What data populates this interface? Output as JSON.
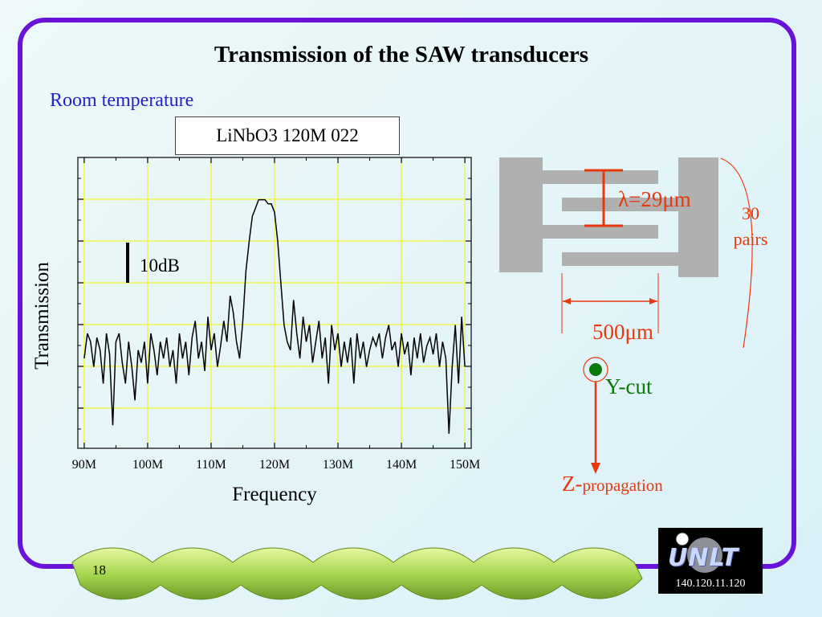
{
  "slide": {
    "title": "Transmission of the SAW transducers",
    "subtitle": "Room temperature",
    "page_number": "18",
    "logo_text": "UNLT",
    "logo_code": "140.120.11.120"
  },
  "chart_data": {
    "type": "line",
    "legend": "LiNbO3 120M 022",
    "xlabel": "Frequency",
    "ylabel": "Transmission",
    "xlim": [
      89,
      151
    ],
    "tick_labels": [
      "90M",
      "100M",
      "110M",
      "120M",
      "130M",
      "140M",
      "150M"
    ],
    "tick_values": [
      90,
      100,
      110,
      120,
      130,
      140,
      150
    ],
    "scale_bar": "10dB",
    "grid": true,
    "series": [
      {
        "x": [
          90.0,
          90.5,
          91.0,
          91.5,
          92.0,
          92.5,
          93.0,
          93.5,
          94.0,
          94.5,
          95.0,
          95.5,
          96.0,
          96.5,
          97.0,
          97.5,
          98.0,
          98.5,
          99.0,
          99.5,
          100.0,
          100.5,
          101.0,
          101.5,
          102.0,
          102.5,
          103.0,
          103.5,
          104.0,
          104.5,
          105.0,
          105.5,
          106.0,
          106.5,
          107.0,
          107.5,
          108.0,
          108.5,
          109.0,
          109.5,
          110.0,
          110.5,
          111.0,
          111.5,
          112.0,
          112.5,
          113.0,
          113.5,
          114.0,
          114.5,
          115.0,
          115.5,
          116.0,
          116.5,
          117.0,
          117.5,
          118.0,
          118.5,
          119.0,
          119.5,
          120.0,
          120.5,
          121.0,
          121.5,
          122.0,
          122.5,
          123.0,
          123.5,
          124.0,
          124.5,
          125.0,
          125.5,
          126.0,
          126.5,
          127.0,
          127.5,
          128.0,
          128.5,
          129.0,
          129.5,
          130.0,
          130.5,
          131.0,
          131.5,
          132.0,
          132.5,
          133.0,
          133.5,
          134.0,
          134.5,
          135.0,
          135.5,
          136.0,
          136.5,
          137.0,
          137.5,
          138.0,
          138.5,
          139.0,
          139.5,
          140.0,
          140.5,
          141.0,
          141.5,
          142.0,
          142.5,
          143.0,
          143.5,
          144.0,
          144.5,
          145.0,
          145.5,
          146.0,
          146.5,
          147.0,
          147.5,
          148.0,
          148.5,
          149.0,
          149.5,
          150.0
        ],
        "y": [
          -46,
          -40,
          -42,
          -48,
          -41,
          -44,
          -52,
          -40,
          -45,
          -62,
          -42,
          -40,
          -47,
          -52,
          -42,
          -48,
          -56,
          -44,
          -47,
          -42,
          -52,
          -40,
          -44,
          -50,
          -42,
          -46,
          -41,
          -48,
          -44,
          -52,
          -40,
          -46,
          -42,
          -50,
          -41,
          -37,
          -46,
          -42,
          -49,
          -36,
          -44,
          -40,
          -48,
          -43,
          -37,
          -42,
          -31,
          -35,
          -42,
          -46,
          -37,
          -25,
          -18,
          -12,
          -10,
          -8,
          -8,
          -8,
          -9,
          -9,
          -11,
          -18,
          -28,
          -38,
          -42,
          -44,
          -32,
          -40,
          -46,
          -36,
          -42,
          -38,
          -47,
          -42,
          -37,
          -46,
          -41,
          -52,
          -38,
          -44,
          -40,
          -48,
          -42,
          -47,
          -41,
          -52,
          -40,
          -46,
          -42,
          -48,
          -44,
          -41,
          -43,
          -40,
          -46,
          -41,
          -38,
          -44,
          -42,
          -48,
          -40,
          -45,
          -42,
          -50,
          -41,
          -46,
          -40,
          -47,
          -43,
          -41,
          -45,
          -40,
          -48,
          -42,
          -46,
          -64,
          -48,
          -38,
          -52,
          -36,
          -48
        ]
      }
    ]
  },
  "diagram": {
    "lambda_label": "λ=29μm",
    "pairs_line1": "30",
    "pairs_line2": "pairs",
    "aperture_label": "500μm",
    "y_cut_label": "Y-cut",
    "z_prefix": "Z-",
    "z_propagation": "propagation"
  },
  "colors": {
    "frame": "#6a13d8",
    "accent_red": "#e8380d",
    "accent_green": "#0a7a0a",
    "subtitle": "#2222cc",
    "grid": "#f2f200",
    "electrode": "#b0b0b0"
  }
}
